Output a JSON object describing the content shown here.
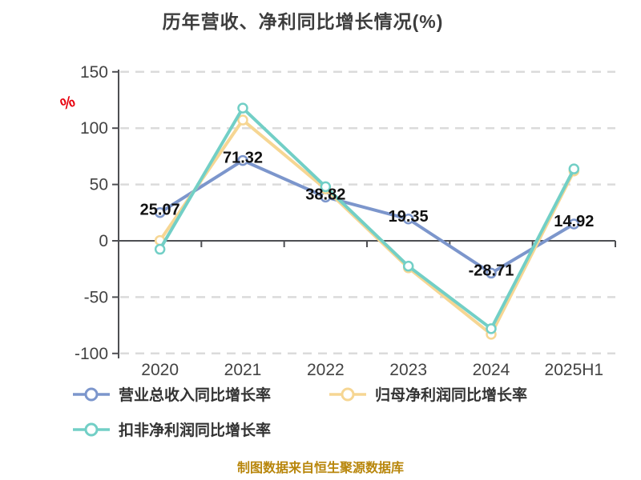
{
  "title": "历年营收、净利同比增长情况(%)",
  "y_unit_label": "%",
  "footer": "制图数据来自恒生聚源数据库",
  "colors": {
    "revenue_series": "#7c96cc",
    "net_profit_series": "#f6d693",
    "deducted_profit_series": "#72cfc6",
    "axis": "#4e4f53",
    "grid": "#dbdbdb",
    "tick_label": "#434343",
    "data_label": "#111111",
    "title_text": "#3d3d3d",
    "footer_text": "#b8860b",
    "unit_red": "#e8000d",
    "marker_fill": "#ffffff"
  },
  "legend": {
    "items": [
      {
        "label": "营业总收入同比增长率"
      },
      {
        "label": "归母净利润同比增长率"
      },
      {
        "label": "扣非净利润同比增长率"
      }
    ]
  },
  "chart_data": {
    "type": "line",
    "title": "历年营收、净利同比增长情况(%)",
    "categories": [
      "2020",
      "2021",
      "2022",
      "2023",
      "2024",
      "2025H1"
    ],
    "series": [
      {
        "name": "营业总收入同比增长率",
        "color": "#7c96cc",
        "values": [
          25.07,
          71.32,
          38.82,
          19.35,
          -28.71,
          14.92
        ],
        "labels_shown": true,
        "labels": [
          "25.07",
          "71.32",
          "38.82",
          "19.35",
          "-28.71",
          "14.92"
        ]
      },
      {
        "name": "归母净利润同比增长率",
        "color": "#f6d693",
        "values": [
          0.3,
          107.2,
          46.0,
          -24.0,
          -83.0,
          62.0
        ],
        "labels_shown": false
      },
      {
        "name": "扣非净利润同比增长率",
        "color": "#72cfc6",
        "values": [
          -7.5,
          117.8,
          48.0,
          -22.5,
          -78.0,
          63.8
        ],
        "labels_shown": false
      }
    ],
    "xlabel": "",
    "ylabel": "%",
    "ylim": [
      -100,
      150
    ],
    "yticks": [
      150,
      100,
      50,
      0,
      -50,
      -100
    ],
    "grid": "horizontal dashed, zero axis solid",
    "legend_position": "bottom"
  }
}
